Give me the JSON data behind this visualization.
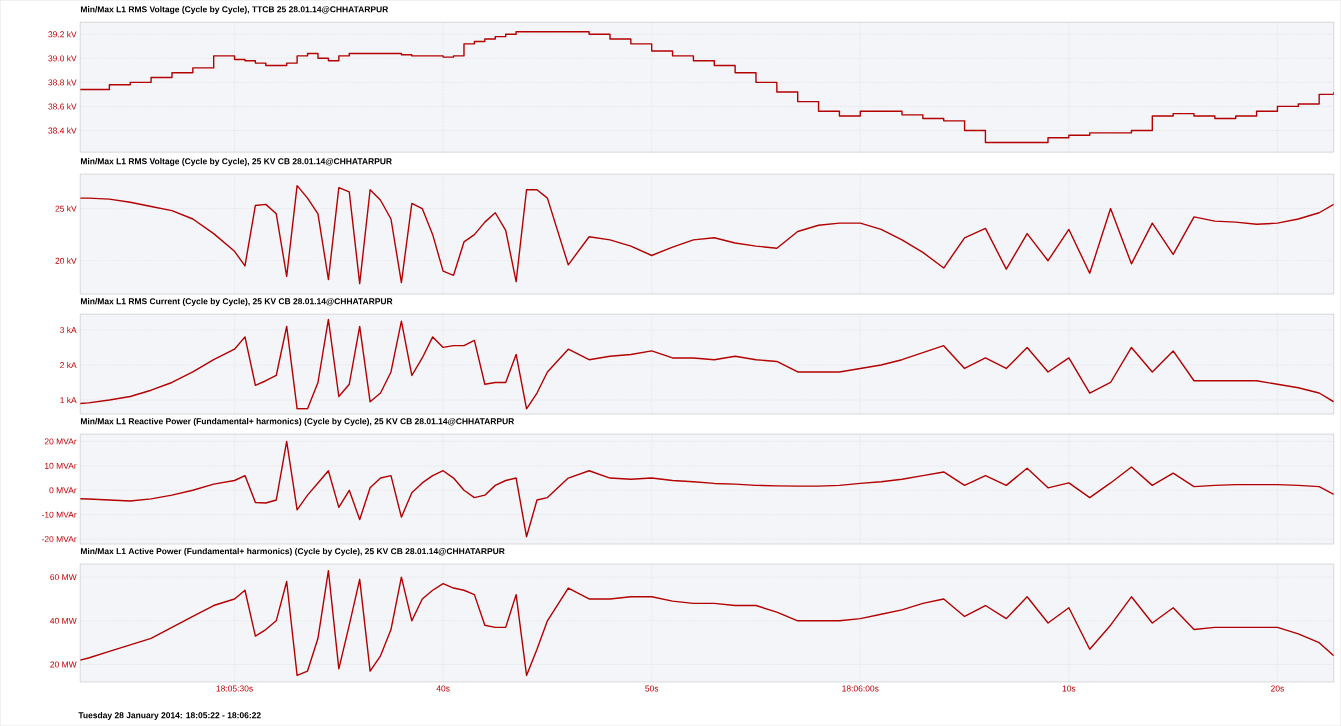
{
  "chart_data": [
    {
      "type": "step",
      "title": "Min/Max L1 RMS Voltage (Cycle by Cycle), TTCB 25 28.01.14@CHHATARPUR",
      "x": [
        "2014-01-28T18:05:22.6",
        "2014-01-28T18:05:23",
        "2014-01-28T18:05:24",
        "2014-01-28T18:05:25",
        "2014-01-28T18:05:26",
        "2014-01-28T18:05:27",
        "2014-01-28T18:05:28",
        "2014-01-28T18:05:29",
        "2014-01-28T18:05:30",
        "2014-01-28T18:05:30.5",
        "2014-01-28T18:05:31",
        "2014-01-28T18:05:31.5",
        "2014-01-28T18:05:32",
        "2014-01-28T18:05:32.5",
        "2014-01-28T18:05:33",
        "2014-01-28T18:05:33.5",
        "2014-01-28T18:05:34",
        "2014-01-28T18:05:34.5",
        "2014-01-28T18:05:35",
        "2014-01-28T18:05:35.5",
        "2014-01-28T18:05:36",
        "2014-01-28T18:05:36.5",
        "2014-01-28T18:05:37",
        "2014-01-28T18:05:37.5",
        "2014-01-28T18:05:38",
        "2014-01-28T18:05:38.5",
        "2014-01-28T18:05:39",
        "2014-01-28T18:05:39.5",
        "2014-01-28T18:05:40",
        "2014-01-28T18:05:40.5",
        "2014-01-28T18:05:41",
        "2014-01-28T18:05:41.5",
        "2014-01-28T18:05:42",
        "2014-01-28T18:05:42.5",
        "2014-01-28T18:05:43",
        "2014-01-28T18:05:43.5",
        "2014-01-28T18:05:44",
        "2014-01-28T18:05:44.5",
        "2014-01-28T18:05:45",
        "2014-01-28T18:05:46",
        "2014-01-28T18:05:47",
        "2014-01-28T18:05:48",
        "2014-01-28T18:05:49",
        "2014-01-28T18:05:50",
        "2014-01-28T18:05:51",
        "2014-01-28T18:05:52",
        "2014-01-28T18:05:53",
        "2014-01-28T18:05:54",
        "2014-01-28T18:05:55",
        "2014-01-28T18:05:56",
        "2014-01-28T18:05:57",
        "2014-01-28T18:05:58",
        "2014-01-28T18:05:59",
        "2014-01-28T18:06:00",
        "2014-01-28T18:06:01",
        "2014-01-28T18:06:02",
        "2014-01-28T18:06:03",
        "2014-01-28T18:06:04",
        "2014-01-28T18:06:05",
        "2014-01-28T18:06:06",
        "2014-01-28T18:06:07",
        "2014-01-28T18:06:08",
        "2014-01-28T18:06:09",
        "2014-01-28T18:06:10",
        "2014-01-28T18:06:11",
        "2014-01-28T18:06:12",
        "2014-01-28T18:06:13",
        "2014-01-28T18:06:14",
        "2014-01-28T18:06:15",
        "2014-01-28T18:06:16",
        "2014-01-28T18:06:17",
        "2014-01-28T18:06:18",
        "2014-01-28T18:06:19",
        "2014-01-28T18:06:20",
        "2014-01-28T18:06:21",
        "2014-01-28T18:06:22",
        "2014-01-28T18:06:22.7"
      ],
      "values": [
        38.74,
        38.74,
        38.78,
        38.8,
        38.84,
        38.88,
        38.92,
        39.02,
        38.99,
        38.98,
        38.96,
        38.94,
        38.94,
        38.96,
        39.02,
        39.04,
        39.0,
        38.98,
        39.02,
        39.04,
        39.04,
        39.04,
        39.04,
        39.04,
        39.03,
        39.02,
        39.02,
        39.02,
        39.01,
        39.02,
        39.12,
        39.14,
        39.16,
        39.18,
        39.2,
        39.22,
        39.22,
        39.22,
        39.22,
        39.22,
        39.2,
        39.16,
        39.12,
        39.06,
        39.02,
        38.98,
        38.94,
        38.88,
        38.8,
        38.72,
        38.64,
        38.56,
        38.52,
        38.56,
        38.56,
        38.53,
        38.5,
        38.48,
        38.4,
        38.3,
        38.3,
        38.3,
        38.34,
        38.36,
        38.38,
        38.38,
        38.4,
        38.52,
        38.54,
        38.52,
        38.5,
        38.52,
        38.56,
        38.6,
        38.62,
        38.7,
        38.72
      ],
      "color": "#b40000",
      "xlim": [
        "2014-01-28T18:05:22.6",
        "2014-01-28T18:06:22.7"
      ],
      "xticks": [
        {
          "value": "2014-01-28T18:05:30",
          "label": null
        },
        {
          "value": "2014-01-28T18:05:40",
          "label": null
        },
        {
          "value": "2014-01-28T18:05:50",
          "label": null
        },
        {
          "value": "2014-01-28T18:06:00",
          "label": null
        },
        {
          "value": "2014-01-28T18:06:10",
          "label": null
        },
        {
          "value": "2014-01-28T18:06:20",
          "label": null
        }
      ],
      "ylim": [
        38.22,
        39.3
      ],
      "yticks": [
        {
          "value": 38.4,
          "label": "38.4 kV"
        },
        {
          "value": 38.6,
          "label": "38.6 kV"
        },
        {
          "value": 38.8,
          "label": "38.8 kV"
        },
        {
          "value": 39.0,
          "label": "39.0 kV"
        },
        {
          "value": 39.2,
          "label": "39.2 kV"
        }
      ],
      "grid": true,
      "tick_labels": "y"
    },
    {
      "type": "line",
      "title": "Min/Max L1 RMS Voltage (Cycle by Cycle), 25 KV CB 28.01.14@CHHATARPUR",
      "x": [
        "2014-01-28T18:05:22.6",
        "2014-01-28T18:05:23",
        "2014-01-28T18:05:24",
        "2014-01-28T18:05:25",
        "2014-01-28T18:05:26",
        "2014-01-28T18:05:27",
        "2014-01-28T18:05:28",
        "2014-01-28T18:05:29",
        "2014-01-28T18:05:30",
        "2014-01-28T18:05:30.5",
        "2014-01-28T18:05:31",
        "2014-01-28T18:05:31.5",
        "2014-01-28T18:05:32",
        "2014-01-28T18:05:32.5",
        "2014-01-28T18:05:33",
        "2014-01-28T18:05:33.5",
        "2014-01-28T18:05:34",
        "2014-01-28T18:05:34.5",
        "2014-01-28T18:05:35",
        "2014-01-28T18:05:35.5",
        "2014-01-28T18:05:36",
        "2014-01-28T18:05:36.5",
        "2014-01-28T18:05:37",
        "2014-01-28T18:05:37.5",
        "2014-01-28T18:05:38",
        "2014-01-28T18:05:38.5",
        "2014-01-28T18:05:39",
        "2014-01-28T18:05:39.5",
        "2014-01-28T18:05:40",
        "2014-01-28T18:05:40.5",
        "2014-01-28T18:05:41",
        "2014-01-28T18:05:41.5",
        "2014-01-28T18:05:42",
        "2014-01-28T18:05:42.5",
        "2014-01-28T18:05:43",
        "2014-01-28T18:05:43.5",
        "2014-01-28T18:05:44",
        "2014-01-28T18:05:44.5",
        "2014-01-28T18:05:45",
        "2014-01-28T18:05:46",
        "2014-01-28T18:05:47",
        "2014-01-28T18:05:48",
        "2014-01-28T18:05:49",
        "2014-01-28T18:05:50",
        "2014-01-28T18:05:51",
        "2014-01-28T18:05:52",
        "2014-01-28T18:05:53",
        "2014-01-28T18:05:54",
        "2014-01-28T18:05:55",
        "2014-01-28T18:05:56",
        "2014-01-28T18:05:57",
        "2014-01-28T18:05:58",
        "2014-01-28T18:05:59",
        "2014-01-28T18:06:00",
        "2014-01-28T18:06:01",
        "2014-01-28T18:06:02",
        "2014-01-28T18:06:03",
        "2014-01-28T18:06:04",
        "2014-01-28T18:06:05",
        "2014-01-28T18:06:06",
        "2014-01-28T18:06:07",
        "2014-01-28T18:06:08",
        "2014-01-28T18:06:09",
        "2014-01-28T18:06:10",
        "2014-01-28T18:06:11",
        "2014-01-28T18:06:12",
        "2014-01-28T18:06:13",
        "2014-01-28T18:06:14",
        "2014-01-28T18:06:15",
        "2014-01-28T18:06:16",
        "2014-01-28T18:06:17",
        "2014-01-28T18:06:18",
        "2014-01-28T18:06:19",
        "2014-01-28T18:06:20",
        "2014-01-28T18:06:21",
        "2014-01-28T18:06:22",
        "2014-01-28T18:06:22.7"
      ],
      "values": [
        26.0,
        26.0,
        25.9,
        25.6,
        25.2,
        24.8,
        24.0,
        22.6,
        20.9,
        19.5,
        25.3,
        25.4,
        24.5,
        18.5,
        27.2,
        26.0,
        24.5,
        18.2,
        27.0,
        26.6,
        17.8,
        26.8,
        25.8,
        24.0,
        17.9,
        25.5,
        25.0,
        22.5,
        19.0,
        18.6,
        21.8,
        22.5,
        23.7,
        24.6,
        22.9,
        18.0,
        26.8,
        26.8,
        26.0,
        19.6,
        22.3,
        22.0,
        21.4,
        20.5,
        21.3,
        22.0,
        22.2,
        21.7,
        21.4,
        21.2,
        22.8,
        23.4,
        23.6,
        23.6,
        23.0,
        22.0,
        20.8,
        19.3,
        22.2,
        23.1,
        19.2,
        22.6,
        20.0,
        23.0,
        18.8,
        25.0,
        19.7,
        23.6,
        20.6,
        24.2,
        23.8,
        23.7,
        23.5,
        23.6,
        24.0,
        24.6,
        25.4
      ],
      "color": "#b40000",
      "xlim": [
        "2014-01-28T18:05:22.6",
        "2014-01-28T18:06:22.7"
      ],
      "xticks": [
        {
          "value": "2014-01-28T18:05:30",
          "label": null
        },
        {
          "value": "2014-01-28T18:05:40",
          "label": null
        },
        {
          "value": "2014-01-28T18:05:50",
          "label": null
        },
        {
          "value": "2014-01-28T18:06:00",
          "label": null
        },
        {
          "value": "2014-01-28T18:06:10",
          "label": null
        },
        {
          "value": "2014-01-28T18:06:20",
          "label": null
        }
      ],
      "ylim": [
        16.8,
        28.3
      ],
      "yticks": [
        {
          "value": 20,
          "label": "20 kV"
        },
        {
          "value": 25,
          "label": "25 kV"
        }
      ],
      "grid": true,
      "tick_labels": "y"
    },
    {
      "type": "line",
      "title": "Min/Max L1 RMS Current (Cycle by Cycle), 25 KV CB 28.01.14@CHHATARPUR",
      "x": [
        "2014-01-28T18:05:22.6",
        "2014-01-28T18:05:23",
        "2014-01-28T18:05:24",
        "2014-01-28T18:05:25",
        "2014-01-28T18:05:26",
        "2014-01-28T18:05:27",
        "2014-01-28T18:05:28",
        "2014-01-28T18:05:29",
        "2014-01-28T18:05:30",
        "2014-01-28T18:05:30.5",
        "2014-01-28T18:05:31",
        "2014-01-28T18:05:31.5",
        "2014-01-28T18:05:32",
        "2014-01-28T18:05:32.5",
        "2014-01-28T18:05:33",
        "2014-01-28T18:05:33.5",
        "2014-01-28T18:05:34",
        "2014-01-28T18:05:34.5",
        "2014-01-28T18:05:35",
        "2014-01-28T18:05:35.5",
        "2014-01-28T18:05:36",
        "2014-01-28T18:05:36.5",
        "2014-01-28T18:05:37",
        "2014-01-28T18:05:37.5",
        "2014-01-28T18:05:38",
        "2014-01-28T18:05:38.5",
        "2014-01-28T18:05:39",
        "2014-01-28T18:05:39.5",
        "2014-01-28T18:05:40",
        "2014-01-28T18:05:40.5",
        "2014-01-28T18:05:41",
        "2014-01-28T18:05:41.5",
        "2014-01-28T18:05:42",
        "2014-01-28T18:05:42.5",
        "2014-01-28T18:05:43",
        "2014-01-28T18:05:43.5",
        "2014-01-28T18:05:44",
        "2014-01-28T18:05:44.5",
        "2014-01-28T18:05:45",
        "2014-01-28T18:05:46",
        "2014-01-28T18:05:47",
        "2014-01-28T18:05:48",
        "2014-01-28T18:05:49",
        "2014-01-28T18:05:50",
        "2014-01-28T18:05:51",
        "2014-01-28T18:05:52",
        "2014-01-28T18:05:53",
        "2014-01-28T18:05:54",
        "2014-01-28T18:05:55",
        "2014-01-28T18:05:56",
        "2014-01-28T18:05:57",
        "2014-01-28T18:05:58",
        "2014-01-28T18:05:59",
        "2014-01-28T18:06:00",
        "2014-01-28T18:06:01",
        "2014-01-28T18:06:02",
        "2014-01-28T18:06:03",
        "2014-01-28T18:06:04",
        "2014-01-28T18:06:05",
        "2014-01-28T18:06:06",
        "2014-01-28T18:06:07",
        "2014-01-28T18:06:08",
        "2014-01-28T18:06:09",
        "2014-01-28T18:06:10",
        "2014-01-28T18:06:11",
        "2014-01-28T18:06:12",
        "2014-01-28T18:06:13",
        "2014-01-28T18:06:14",
        "2014-01-28T18:06:15",
        "2014-01-28T18:06:16",
        "2014-01-28T18:06:17",
        "2014-01-28T18:06:18",
        "2014-01-28T18:06:19",
        "2014-01-28T18:06:20",
        "2014-01-28T18:06:21",
        "2014-01-28T18:06:22",
        "2014-01-28T18:06:22.7"
      ],
      "values": [
        0.9,
        0.92,
        1.0,
        1.1,
        1.28,
        1.5,
        1.8,
        2.15,
        2.45,
        2.8,
        1.42,
        1.55,
        1.7,
        3.1,
        0.75,
        0.75,
        1.5,
        3.3,
        1.1,
        1.45,
        3.1,
        0.95,
        1.2,
        1.8,
        3.25,
        1.7,
        2.2,
        2.8,
        2.5,
        2.55,
        2.55,
        2.7,
        1.45,
        1.5,
        1.5,
        2.3,
        0.75,
        1.2,
        1.8,
        2.45,
        2.15,
        2.25,
        2.3,
        2.4,
        2.2,
        2.2,
        2.15,
        2.25,
        2.15,
        2.1,
        1.8,
        1.8,
        1.8,
        1.9,
        2.0,
        2.15,
        2.35,
        2.55,
        1.9,
        2.2,
        1.9,
        2.5,
        1.8,
        2.2,
        1.2,
        1.5,
        2.5,
        1.8,
        2.4,
        1.55,
        1.55,
        1.55,
        1.55,
        1.45,
        1.35,
        1.2,
        0.95
      ],
      "color": "#b40000",
      "xlim": [
        "2014-01-28T18:05:22.6",
        "2014-01-28T18:06:22.7"
      ],
      "xticks": [
        {
          "value": "2014-01-28T18:05:30",
          "label": null
        },
        {
          "value": "2014-01-28T18:05:40",
          "label": null
        },
        {
          "value": "2014-01-28T18:05:50",
          "label": null
        },
        {
          "value": "2014-01-28T18:06:00",
          "label": null
        },
        {
          "value": "2014-01-28T18:06:10",
          "label": null
        },
        {
          "value": "2014-01-28T18:06:20",
          "label": null
        }
      ],
      "ylim": [
        0.6,
        3.45
      ],
      "yticks": [
        {
          "value": 1,
          "label": "1 kA"
        },
        {
          "value": 2,
          "label": "2 kA"
        },
        {
          "value": 3,
          "label": "3 kA"
        }
      ],
      "grid": true,
      "tick_labels": "y"
    },
    {
      "type": "line",
      "title": "Min/Max L1 Reactive Power (Fundamental+ harmonics) (Cycle by Cycle), 25 KV CB 28.01.14@CHHATARPUR",
      "x": [
        "2014-01-28T18:05:22.6",
        "2014-01-28T18:05:23",
        "2014-01-28T18:05:24",
        "2014-01-28T18:05:25",
        "2014-01-28T18:05:26",
        "2014-01-28T18:05:27",
        "2014-01-28T18:05:28",
        "2014-01-28T18:05:29",
        "2014-01-28T18:05:30",
        "2014-01-28T18:05:30.5",
        "2014-01-28T18:05:31",
        "2014-01-28T18:05:31.5",
        "2014-01-28T18:05:32",
        "2014-01-28T18:05:32.5",
        "2014-01-28T18:05:33",
        "2014-01-28T18:05:33.5",
        "2014-01-28T18:05:34",
        "2014-01-28T18:05:34.5",
        "2014-01-28T18:05:35",
        "2014-01-28T18:05:35.5",
        "2014-01-28T18:05:36",
        "2014-01-28T18:05:36.5",
        "2014-01-28T18:05:37",
        "2014-01-28T18:05:37.5",
        "2014-01-28T18:05:38",
        "2014-01-28T18:05:38.5",
        "2014-01-28T18:05:39",
        "2014-01-28T18:05:39.5",
        "2014-01-28T18:05:40",
        "2014-01-28T18:05:40.5",
        "2014-01-28T18:05:41",
        "2014-01-28T18:05:41.5",
        "2014-01-28T18:05:42",
        "2014-01-28T18:05:42.5",
        "2014-01-28T18:05:43",
        "2014-01-28T18:05:43.5",
        "2014-01-28T18:05:44",
        "2014-01-28T18:05:44.5",
        "2014-01-28T18:05:45",
        "2014-01-28T18:05:46",
        "2014-01-28T18:05:47",
        "2014-01-28T18:05:48",
        "2014-01-28T18:05:49",
        "2014-01-28T18:05:50",
        "2014-01-28T18:05:51",
        "2014-01-28T18:05:52",
        "2014-01-28T18:05:53",
        "2014-01-28T18:05:54",
        "2014-01-28T18:05:55",
        "2014-01-28T18:05:56",
        "2014-01-28T18:05:57",
        "2014-01-28T18:05:58",
        "2014-01-28T18:05:59",
        "2014-01-28T18:06:00",
        "2014-01-28T18:06:01",
        "2014-01-28T18:06:02",
        "2014-01-28T18:06:03",
        "2014-01-28T18:06:04",
        "2014-01-28T18:06:05",
        "2014-01-28T18:06:06",
        "2014-01-28T18:06:07",
        "2014-01-28T18:06:08",
        "2014-01-28T18:06:09",
        "2014-01-28T18:06:10",
        "2014-01-28T18:06:11",
        "2014-01-28T18:06:12",
        "2014-01-28T18:06:13",
        "2014-01-28T18:06:14",
        "2014-01-28T18:06:15",
        "2014-01-28T18:06:16",
        "2014-01-28T18:06:17",
        "2014-01-28T18:06:18",
        "2014-01-28T18:06:19",
        "2014-01-28T18:06:20",
        "2014-01-28T18:06:21",
        "2014-01-28T18:06:22",
        "2014-01-28T18:06:22.7"
      ],
      "values": [
        -3.5,
        -3.6,
        -4.0,
        -4.4,
        -3.5,
        -2.0,
        0,
        2.5,
        4.0,
        6.0,
        -5.0,
        -5.2,
        -4.0,
        20.0,
        -8.0,
        -2.0,
        3.0,
        8.0,
        -7.0,
        0,
        -12.0,
        1.0,
        5.0,
        6.0,
        -11.0,
        -1.0,
        3.0,
        6.0,
        8.0,
        5.0,
        0,
        -3.0,
        -2.0,
        2.0,
        4.0,
        5.0,
        -19.0,
        -4.0,
        -3.0,
        5.0,
        8.0,
        5.0,
        4.5,
        5.0,
        4.0,
        3.5,
        2.8,
        2.5,
        2.0,
        1.8,
        1.7,
        1.7,
        2.0,
        2.8,
        3.5,
        4.5,
        6.0,
        7.5,
        2.0,
        6.0,
        2.0,
        9.0,
        1.0,
        3.0,
        -3.0,
        3.0,
        9.5,
        2.0,
        7.0,
        1.5,
        2.0,
        2.3,
        2.3,
        2.3,
        2.0,
        1.5,
        -1.7
      ],
      "color": "#b40000",
      "xlim": [
        "2014-01-28T18:05:22.6",
        "2014-01-28T18:06:22.7"
      ],
      "xticks": [
        {
          "value": "2014-01-28T18:05:30",
          "label": null
        },
        {
          "value": "2014-01-28T18:05:40",
          "label": null
        },
        {
          "value": "2014-01-28T18:05:50",
          "label": null
        },
        {
          "value": "2014-01-28T18:06:00",
          "label": null
        },
        {
          "value": "2014-01-28T18:06:10",
          "label": null
        },
        {
          "value": "2014-01-28T18:06:20",
          "label": null
        }
      ],
      "ylim": [
        -22,
        23
      ],
      "yticks": [
        {
          "value": -20,
          "label": "-20 MVAr"
        },
        {
          "value": -10,
          "label": "-10 MVAr"
        },
        {
          "value": 0,
          "label": "0 MVAr"
        },
        {
          "value": 10,
          "label": "10 MVAr"
        },
        {
          "value": 20,
          "label": "20 MVAr"
        }
      ],
      "grid": true,
      "tick_labels": "y"
    },
    {
      "type": "line",
      "title": "Min/Max L1 Active Power  (Fundamental+ harmonics) (Cycle by Cycle), 25 KV CB 28.01.14@CHHATARPUR",
      "x": [
        "2014-01-28T18:05:22.6",
        "2014-01-28T18:05:23",
        "2014-01-28T18:05:24",
        "2014-01-28T18:05:25",
        "2014-01-28T18:05:26",
        "2014-01-28T18:05:27",
        "2014-01-28T18:05:28",
        "2014-01-28T18:05:29",
        "2014-01-28T18:05:30",
        "2014-01-28T18:05:30.5",
        "2014-01-28T18:05:31",
        "2014-01-28T18:05:31.5",
        "2014-01-28T18:05:32",
        "2014-01-28T18:05:32.5",
        "2014-01-28T18:05:33",
        "2014-01-28T18:05:33.5",
        "2014-01-28T18:05:34",
        "2014-01-28T18:05:34.5",
        "2014-01-28T18:05:35",
        "2014-01-28T18:05:35.5",
        "2014-01-28T18:05:36",
        "2014-01-28T18:05:36.5",
        "2014-01-28T18:05:37",
        "2014-01-28T18:05:37.5",
        "2014-01-28T18:05:38",
        "2014-01-28T18:05:38.5",
        "2014-01-28T18:05:39",
        "2014-01-28T18:05:39.5",
        "2014-01-28T18:05:40",
        "2014-01-28T18:05:40.5",
        "2014-01-28T18:05:41",
        "2014-01-28T18:05:41.5",
        "2014-01-28T18:05:42",
        "2014-01-28T18:05:42.5",
        "2014-01-28T18:05:43",
        "2014-01-28T18:05:43.5",
        "2014-01-28T18:05:44",
        "2014-01-28T18:05:44.5",
        "2014-01-28T18:05:45",
        "2014-01-28T18:05:46",
        "2014-01-28T18:05:47",
        "2014-01-28T18:05:48",
        "2014-01-28T18:05:49",
        "2014-01-28T18:05:50",
        "2014-01-28T18:05:51",
        "2014-01-28T18:05:52",
        "2014-01-28T18:05:53",
        "2014-01-28T18:05:54",
        "2014-01-28T18:05:55",
        "2014-01-28T18:05:56",
        "2014-01-28T18:05:57",
        "2014-01-28T18:05:58",
        "2014-01-28T18:05:59",
        "2014-01-28T18:06:00",
        "2014-01-28T18:06:01",
        "2014-01-28T18:06:02",
        "2014-01-28T18:06:03",
        "2014-01-28T18:06:04",
        "2014-01-28T18:06:05",
        "2014-01-28T18:06:06",
        "2014-01-28T18:06:07",
        "2014-01-28T18:06:08",
        "2014-01-28T18:06:09",
        "2014-01-28T18:06:10",
        "2014-01-28T18:06:11",
        "2014-01-28T18:06:12",
        "2014-01-28T18:06:13",
        "2014-01-28T18:06:14",
        "2014-01-28T18:06:15",
        "2014-01-28T18:06:16",
        "2014-01-28T18:06:17",
        "2014-01-28T18:06:18",
        "2014-01-28T18:06:19",
        "2014-01-28T18:06:20",
        "2014-01-28T18:06:21",
        "2014-01-28T18:06:22",
        "2014-01-28T18:06:22.7"
      ],
      "values": [
        22,
        23,
        26,
        29,
        32,
        37,
        42,
        47,
        50,
        54,
        33,
        36,
        40,
        58,
        15,
        17,
        32,
        63,
        18,
        38,
        59,
        17,
        24,
        36,
        60,
        40,
        50,
        54,
        57,
        55,
        54,
        52,
        38,
        37,
        37,
        52,
        15,
        27,
        40,
        55,
        50,
        50,
        51,
        51,
        49,
        48,
        48,
        47,
        47,
        44,
        40,
        40,
        40,
        41,
        43,
        45,
        48,
        50,
        42,
        47,
        41,
        51,
        39,
        46,
        27,
        38,
        51,
        39,
        46,
        36,
        37,
        37,
        37,
        37,
        34,
        30,
        24
      ],
      "color": "#b40000",
      "xlim": [
        "2014-01-28T18:05:22.6",
        "2014-01-28T18:06:22.7"
      ],
      "xticks": [
        {
          "value": "2014-01-28T18:05:30",
          "label": "18:05:30s"
        },
        {
          "value": "2014-01-28T18:05:40",
          "label": "40s"
        },
        {
          "value": "2014-01-28T18:05:50",
          "label": "50s"
        },
        {
          "value": "2014-01-28T18:06:00",
          "label": "18:06:00s"
        },
        {
          "value": "2014-01-28T18:06:10",
          "label": "10s"
        },
        {
          "value": "2014-01-28T18:06:20",
          "label": "20s"
        }
      ],
      "ylim": [
        12,
        66
      ],
      "yticks": [
        {
          "value": 20,
          "label": "20 MW"
        },
        {
          "value": 40,
          "label": "40 MW"
        },
        {
          "value": 60,
          "label": "60 MW"
        }
      ],
      "grid": true,
      "annotations": [
        "Tuesday 28 January 2014: 18:05:22 - 18:06:22"
      ]
    }
  ]
}
